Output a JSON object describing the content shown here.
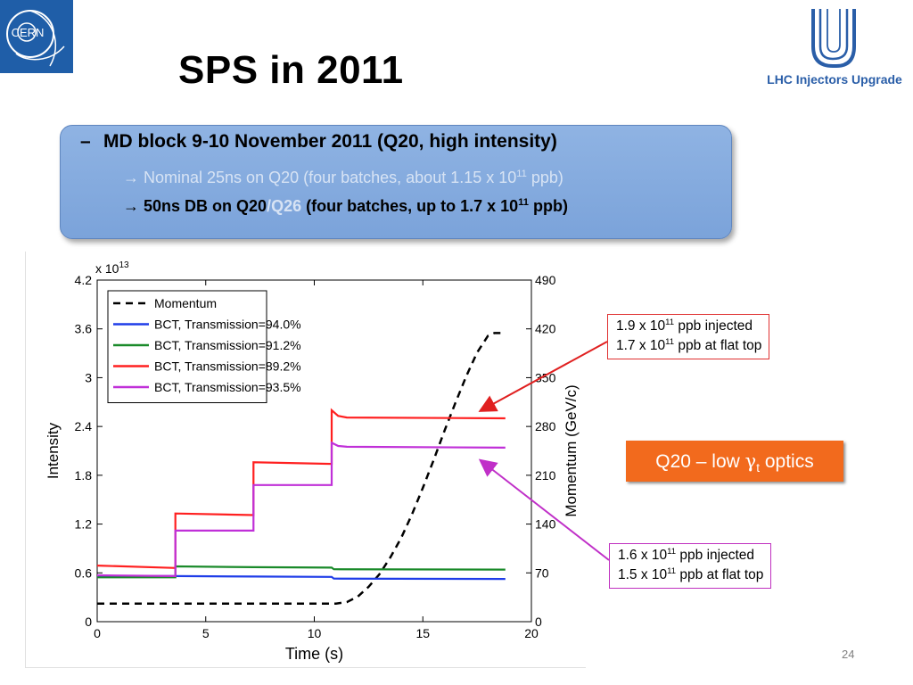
{
  "header": {
    "title": "SPS in 2011",
    "logo_left_text": "CERN",
    "logo_right_text": "LHC Injectors Upgrade"
  },
  "md_box": {
    "dash": "–",
    "header": "MD block 9-10 November 2011 (Q20, high intensity)",
    "line1_prefix": "→ Nominal 25ns on Q20  (four batches, about 1.15 x 10",
    "line1_sup": "11",
    "line1_suffix": " ppb)",
    "line2_prefix": "→ 50ns DB on Q20",
    "line2_slash": "/",
    "line2_q26": "Q26",
    "line2_mid": " (four batches, up to 1.7 x 10",
    "line2_sup": "11",
    "line2_suffix": " ppb)"
  },
  "annotations": {
    "red_line1_prefix": "1.9 x 10",
    "red_line1_sup": "11",
    "red_line1_suffix": " ppb injected",
    "red_line2_prefix": "1.7 x 10",
    "red_line2_sup": "11",
    "red_line2_suffix": " ppb at flat top",
    "mag_line1_prefix": "1.6 x 10",
    "mag_line1_sup": "11",
    "mag_line1_suffix": " ppb injected",
    "mag_line2_prefix": "1.5 x 10",
    "mag_line2_sup": "11",
    "mag_line2_suffix": " ppb at flat top",
    "optics_prefix": "Q20 – low ",
    "optics_gamma": "γ",
    "optics_sub": "t",
    "optics_suffix": " optics"
  },
  "colors": {
    "red": "#ff2020",
    "magenta": "#c030d8",
    "blue": "#1f3de8",
    "green": "#1a8a2a",
    "momentum": "#000000",
    "box_fill": "#8fb3e3",
    "optics_fill": "#f26a1d"
  },
  "page_number": "24",
  "chart_data": {
    "type": "line",
    "xlabel": "Time (s)",
    "ylabel": "Intensity",
    "y2label": "Momentum (GeV/c)",
    "y_multiplier": "x 10",
    "y_multiplier_exp": "13",
    "xlim": [
      0,
      20
    ],
    "ylim": [
      0,
      4.2
    ],
    "y2lim": [
      0,
      490
    ],
    "x_ticks": [
      "0",
      "5",
      "10",
      "15",
      "20"
    ],
    "y_ticks": [
      "0",
      "0.6",
      "1.2",
      "1.8",
      "2.4",
      "3",
      "3.6",
      "4.2"
    ],
    "y2_ticks": [
      "0",
      "70",
      "140",
      "210",
      "280",
      "350",
      "420",
      "490"
    ],
    "legend_position": "top-left",
    "series": [
      {
        "name": "Momentum",
        "axis": "right",
        "style": "dashed",
        "color": "#000000",
        "x": [
          0,
          11,
          11.5,
          12,
          12.5,
          13,
          13.5,
          14,
          14.5,
          15,
          15.5,
          16,
          16.5,
          17,
          17.5,
          18,
          18.3,
          18.8
        ],
        "y": [
          26,
          26,
          28,
          36,
          50,
          68,
          92,
          120,
          154,
          192,
          232,
          274,
          314,
          352,
          386,
          410,
          414,
          414
        ]
      },
      {
        "name": "BCT, Transmission=94.0%",
        "axis": "left",
        "style": "solid",
        "color": "#1f3de8",
        "x": [
          0,
          3.6,
          3.6,
          7.2,
          10.8,
          10.9,
          18.8
        ],
        "y": [
          0.56,
          0.56,
          0.56,
          0.555,
          0.55,
          0.53,
          0.525
        ]
      },
      {
        "name": "BCT, Transmission=91.2%",
        "axis": "left",
        "style": "solid",
        "color": "#1a8a2a",
        "x": [
          0,
          3.6,
          3.6,
          7.2,
          10.8,
          10.9,
          18.8
        ],
        "y": [
          0.545,
          0.545,
          0.68,
          0.67,
          0.665,
          0.645,
          0.64
        ]
      },
      {
        "name": "BCT, Transmission=89.2%",
        "axis": "left",
        "style": "solid",
        "color": "#ff2020",
        "x": [
          0,
          3.6,
          3.6,
          7.2,
          7.2,
          10.8,
          10.8,
          11.1,
          11.5,
          18.8
        ],
        "y": [
          0.69,
          0.66,
          1.33,
          1.31,
          1.96,
          1.94,
          2.6,
          2.53,
          2.51,
          2.5
        ]
      },
      {
        "name": "BCT, Transmission=93.5%",
        "axis": "left",
        "style": "solid",
        "color": "#c030d8",
        "x": [
          0,
          3.6,
          3.6,
          7.2,
          7.2,
          10.8,
          10.8,
          11.1,
          11.5,
          18.8
        ],
        "y": [
          0.57,
          0.56,
          1.12,
          1.12,
          1.68,
          1.68,
          2.2,
          2.16,
          2.15,
          2.14
        ]
      }
    ]
  }
}
